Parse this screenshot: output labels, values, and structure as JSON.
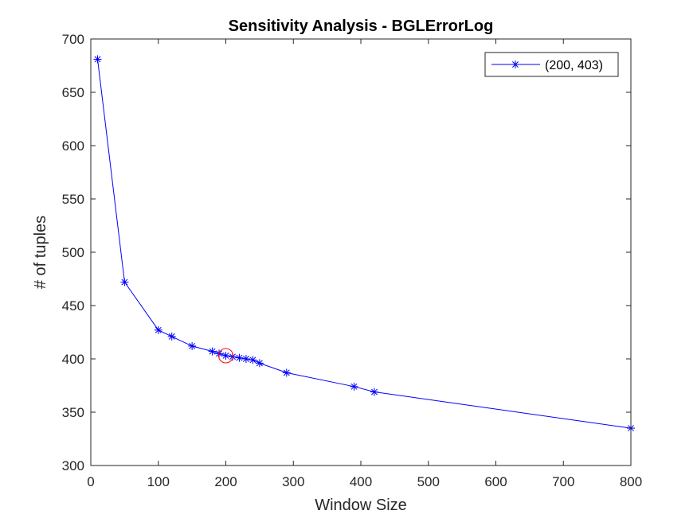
{
  "chart_data": {
    "type": "line",
    "title": "Sensitivity Analysis - BGLErrorLog",
    "xlabel": "Window Size",
    "ylabel": "# of tuples",
    "xlim": [
      0,
      800
    ],
    "ylim": [
      300,
      700
    ],
    "xticks": [
      "0",
      "100",
      "200",
      "300",
      "400",
      "500",
      "600",
      "700",
      "800"
    ],
    "yticks": [
      "300",
      "350",
      "400",
      "450",
      "500",
      "550",
      "600",
      "650",
      "700"
    ],
    "xtick_values": [
      0,
      100,
      200,
      300,
      400,
      500,
      600,
      700,
      800
    ],
    "ytick_values": [
      300,
      350,
      400,
      450,
      500,
      550,
      600,
      650,
      700
    ],
    "grid": false,
    "legend_position": "top-right",
    "series": [
      {
        "name": "(200, 403)",
        "color": "#0000ff",
        "marker": "asterisk",
        "x": [
          10,
          50,
          100,
          120,
          150,
          180,
          190,
          200,
          210,
          220,
          230,
          240,
          250,
          290,
          390,
          420,
          800
        ],
        "y": [
          681,
          472,
          427,
          421,
          412,
          407,
          405,
          403,
          402,
          401,
          400,
          399,
          396,
          387,
          374,
          369,
          335
        ]
      }
    ],
    "highlight": {
      "x": 200,
      "y": 403,
      "color": "#ff0000",
      "shape": "circle"
    }
  }
}
